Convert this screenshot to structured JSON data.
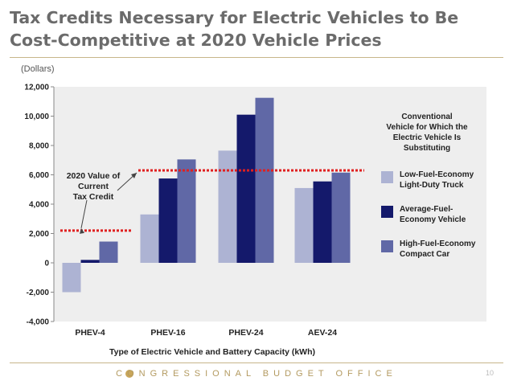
{
  "slide": {
    "title": "Tax Credits Necessary for Electric Vehicles to Be Cost-Competitive at 2020 Vehicle Prices",
    "footer": "CONGRESSIONAL BUDGET OFFICE",
    "page_number": "10"
  },
  "colors": {
    "series": [
      "#adb3d3",
      "#14196b",
      "#6068a6"
    ],
    "reference_line": "#e02020",
    "plot_background": "#eeeeee",
    "title_text": "#6b6b6b"
  },
  "chart_data": {
    "type": "bar",
    "units_label": "(Dollars)",
    "xlabel": "Type of Electric Vehicle and Battery Capacity (kWh)",
    "ylabel": "",
    "categories": [
      "PHEV-4",
      "PHEV-16",
      "PHEV-24",
      "AEV-24"
    ],
    "ylim": [
      -4000,
      12000
    ],
    "yticks": [
      -4000,
      -2000,
      0,
      2000,
      4000,
      6000,
      8000,
      10000,
      12000
    ],
    "ytick_labels": [
      "-4,000",
      "-2,000",
      "0",
      "2,000",
      "4,000",
      "6,000",
      "8,000",
      "10,000",
      "12,000"
    ],
    "grid": false,
    "legend_title": "Conventional Vehicle for Which the Electric Vehicle Is Substituting",
    "legend_position": "right",
    "series": [
      {
        "name": "Low-Fuel-Economy Light-Duty Truck",
        "values": [
          -2000,
          3300,
          7650,
          5100
        ]
      },
      {
        "name": "Average-Fuel-Economy Vehicle",
        "values": [
          200,
          5750,
          10100,
          5550
        ]
      },
      {
        "name": "High-Fuel-Economy Compact Car",
        "values": [
          1450,
          7050,
          11250,
          6150
        ]
      }
    ],
    "reference_lines": [
      {
        "label": "2020 Value of Current Tax Credit",
        "segments": [
          {
            "from": "PHEV-4",
            "to": "PHEV-4",
            "value": 2200
          },
          {
            "from": "PHEV-16",
            "to": "AEV-24",
            "value": 6300
          }
        ]
      }
    ]
  }
}
